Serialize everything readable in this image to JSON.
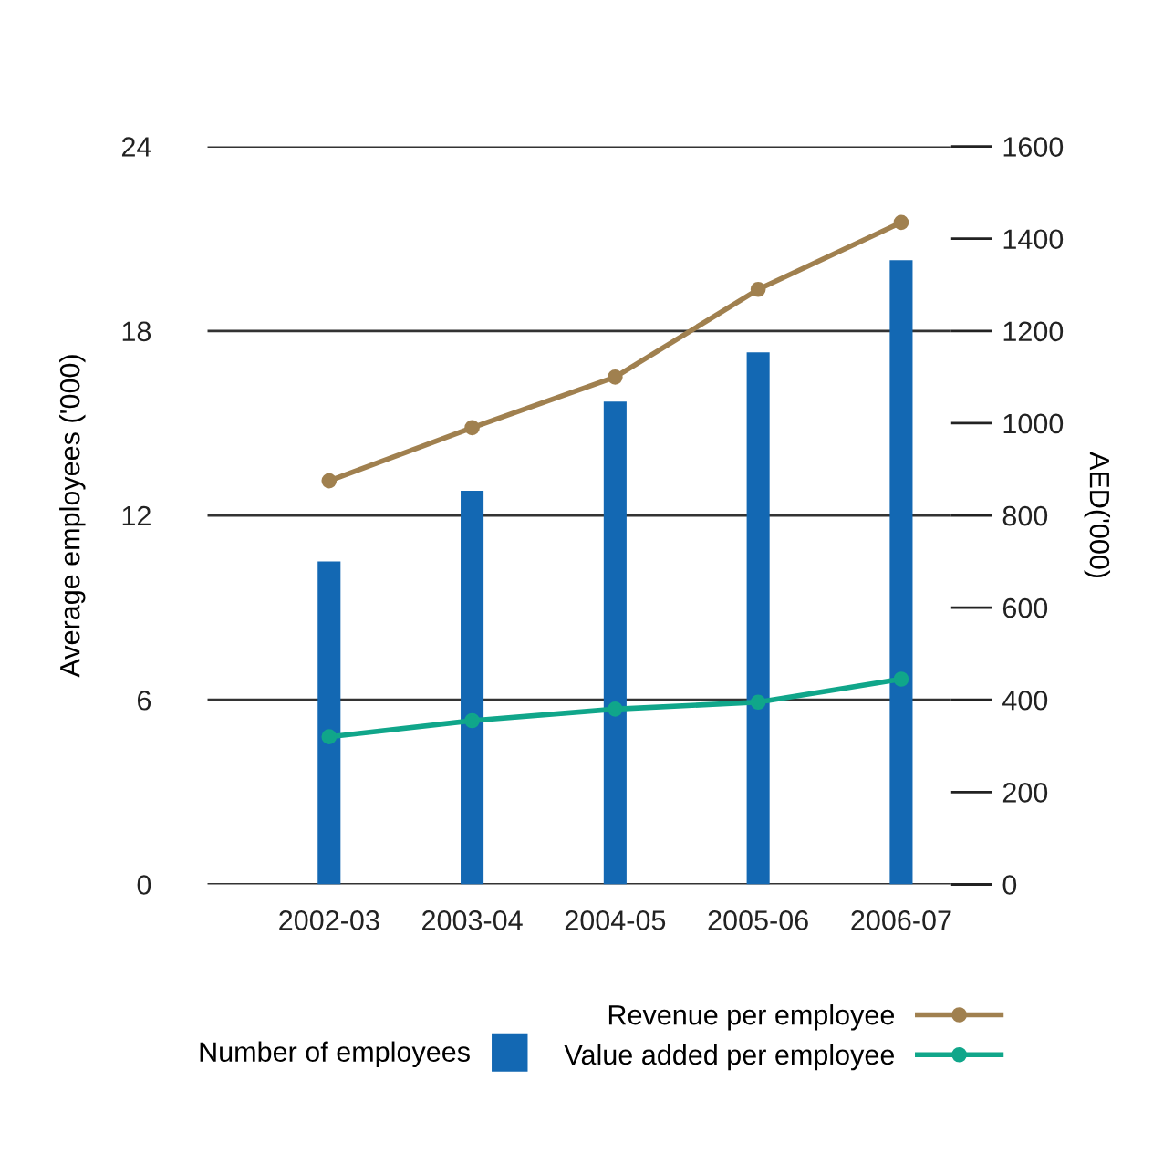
{
  "chart_data": {
    "type": "bar",
    "ylabel": "Average employees ('000)",
    "y2label": "AED('000)",
    "categories": [
      "2002-03",
      "2003-04",
      "2004-05",
      "2005-06",
      "2006-07"
    ],
    "series": [
      {
        "name": "Number of employees",
        "color": "#1368b3",
        "values": [
          10.5,
          12.8,
          15.7,
          17.3,
          20.3
        ]
      },
      {
        "name": "Revenue per employee",
        "type": "line",
        "axis": "y2",
        "color": "#a0804f",
        "values": [
          875,
          990,
          1100,
          1290,
          1435
        ]
      },
      {
        "name": "Value added per employee",
        "type": "line",
        "axis": "y2",
        "color": "#10a68a",
        "values": [
          320,
          355,
          380,
          395,
          445
        ]
      }
    ],
    "ylim": [
      0,
      24
    ],
    "yticks": [
      0,
      6,
      12,
      18,
      24
    ],
    "y2lim": [
      0,
      1600
    ],
    "y2ticks": [
      0,
      200,
      400,
      600,
      800,
      1000,
      1200,
      1400,
      1600
    ],
    "grid": "y",
    "legend": "bottom",
    "marker": "circle",
    "line_style": "solid"
  }
}
